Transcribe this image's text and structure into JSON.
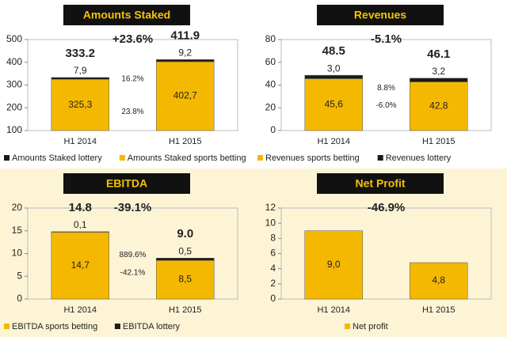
{
  "chart_data": [
    {
      "type": "bar",
      "title": "Amounts Staked",
      "categories": [
        "H1 2014",
        "H1 2015"
      ],
      "series": [
        {
          "name": "Amounts Staked sports betting",
          "color": "#f5b800",
          "values": [
            325.3,
            402.7
          ],
          "value_labels": [
            "325,3",
            "402,7"
          ],
          "growth": "23.8%"
        },
        {
          "name": "Amounts Staked lottery",
          "color": "#1a1a1a",
          "values": [
            7.9,
            9.2
          ],
          "value_labels": [
            "7,9",
            "9,2"
          ],
          "growth": "16.2%"
        }
      ],
      "totals": [
        333.2,
        411.9
      ],
      "change": "+23.6%",
      "legend_reverse": true,
      "ylim": [
        100,
        500
      ],
      "yticks": [
        100,
        200,
        300,
        400,
        500
      ]
    },
    {
      "type": "bar",
      "title": "Revenues",
      "categories": [
        "H1 2014",
        "H1 2015"
      ],
      "series": [
        {
          "name": "Revenues sports betting",
          "color": "#f5b800",
          "values": [
            45.6,
            42.8
          ],
          "value_labels": [
            "45,6",
            "42,8"
          ],
          "growth": "-6.0%"
        },
        {
          "name": "Revenues lottery",
          "color": "#1a1a1a",
          "values": [
            3.0,
            3.2
          ],
          "value_labels": [
            "3,0",
            "3,2"
          ],
          "growth": "8.8%"
        }
      ],
      "totals": [
        48.5,
        46.1
      ],
      "change": "-5.1%",
      "legend_reverse": false,
      "ylim": [
        0,
        80
      ],
      "yticks": [
        0,
        20,
        40,
        60,
        80
      ]
    },
    {
      "type": "bar",
      "title": "EBITDA",
      "categories": [
        "H1 2014",
        "H1 2015"
      ],
      "series": [
        {
          "name": "EBITDA sports betting",
          "color": "#f5b800",
          "values": [
            14.7,
            8.5
          ],
          "value_labels": [
            "14,7",
            "8,5"
          ],
          "growth": "-42.1%"
        },
        {
          "name": "EBITDA lottery",
          "color": "#1a1a1a",
          "values": [
            0.1,
            0.5
          ],
          "value_labels": [
            "0,1",
            "0,5"
          ],
          "growth": "889.6%"
        }
      ],
      "totals": [
        14.8,
        {
          "value": 9,
          "label": "9.0"
        }
      ],
      "change": "-39.1%",
      "legend_reverse": false,
      "ylim": [
        0,
        20
      ],
      "yticks": [
        0,
        5,
        10,
        15,
        20
      ]
    },
    {
      "type": "bar",
      "title": "Net Profit",
      "categories": [
        "H1 2014",
        "H1 2015"
      ],
      "series": [
        {
          "name": "Net profit",
          "color": "#f5b800",
          "values": [
            9.0,
            4.8
          ],
          "value_labels": [
            "9,0",
            "4,8"
          ]
        }
      ],
      "change": "-46.9%",
      "legend_reverse": false,
      "ylim": [
        0,
        12
      ],
      "yticks": [
        0,
        2,
        4,
        6,
        8,
        10,
        12
      ]
    }
  ]
}
